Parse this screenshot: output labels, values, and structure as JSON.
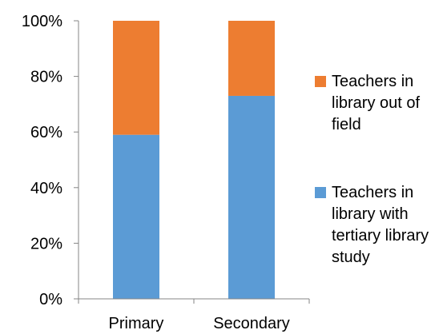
{
  "chart_data": {
    "type": "bar",
    "stacked": true,
    "percent_scale": true,
    "categories": [
      "Primary",
      "Secondary"
    ],
    "series": [
      {
        "name": "Teachers in library with tertiary library study",
        "values": [
          59,
          73
        ],
        "color": "#5b9bd5"
      },
      {
        "name": "Teachers in library out of field",
        "values": [
          41,
          27
        ],
        "color": "#ed7d31"
      }
    ],
    "yticks": [
      "0%",
      "20%",
      "40%",
      "60%",
      "80%",
      "100%"
    ],
    "ylim": [
      0,
      100
    ],
    "grid": false,
    "legend_position": "right"
  },
  "legend": {
    "items": [
      {
        "label": "Teachers in library out of field",
        "color": "#ed7d31"
      },
      {
        "label": "Teachers in library with tertiary library study",
        "color": "#5b9bd5"
      }
    ]
  }
}
